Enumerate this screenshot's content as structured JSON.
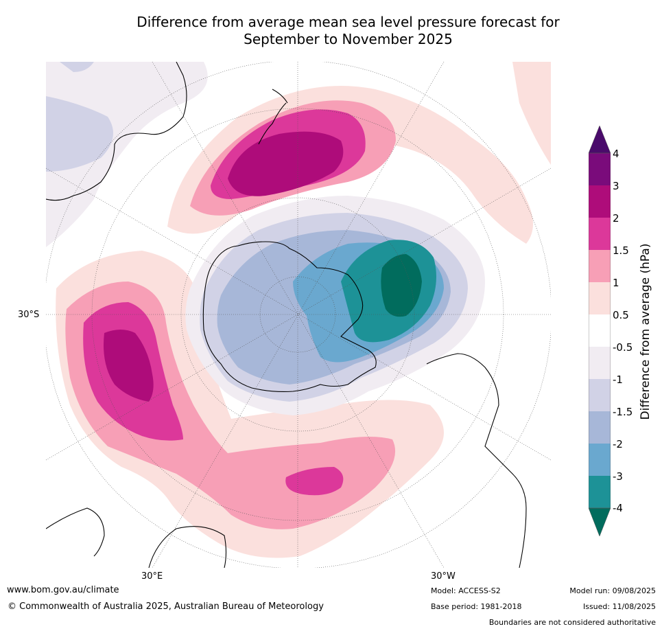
{
  "title_line1": "Difference from average mean sea level pressure forecast for",
  "title_line2": "September to November 2025",
  "map": {
    "projection": "south-polar-stereographic",
    "lat_label": "30°S",
    "lon_labels": {
      "east": "30°E",
      "west": "30°W"
    }
  },
  "colorbar": {
    "label": "Difference from average (hPa)",
    "ticks": [
      "4",
      "3",
      "2",
      "1.5",
      "1",
      "0.5",
      "-0.5",
      "-1",
      "-1.5",
      "-2",
      "-3",
      "-4"
    ],
    "colors_top_to_bottom": [
      "#4a0b6b",
      "#7a0b7b",
      "#ae0c7a",
      "#dc389a",
      "#f79fb6",
      "#fbe0dd",
      "#ffffff",
      "#f1ecf2",
      "#d1d2e6",
      "#a7b7d8",
      "#6aa8cf",
      "#1d9297",
      "#016c5d"
    ]
  },
  "footer": {
    "url": "www.bom.gov.au/climate",
    "copyright": "© Commonwealth of Australia 2025, Australian Bureau of Meteorology",
    "model": "Model: ACCESS-S2",
    "base_period": "Base period: 1981-2018",
    "model_run": "Model run: 09/08/2025",
    "issued": "Issued: 11/08/2025",
    "disclaimer": "Boundaries are not considered authoritative"
  }
}
